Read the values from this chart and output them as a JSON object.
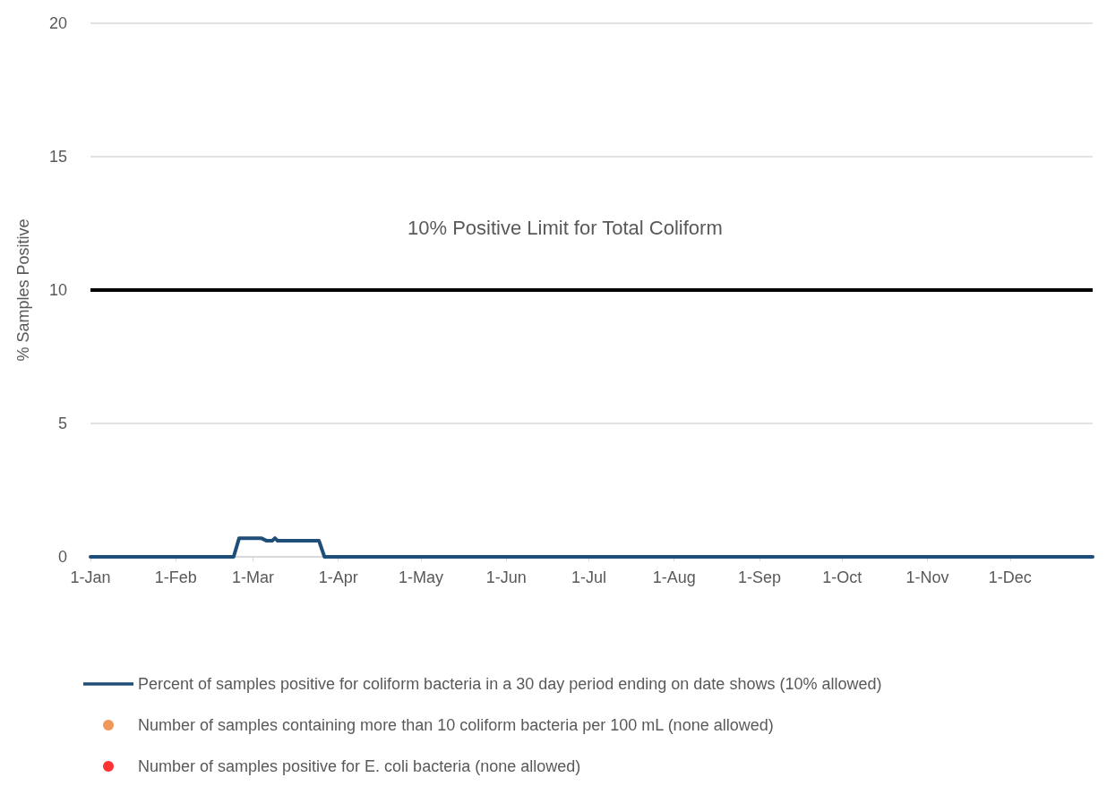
{
  "chart_data": {
    "type": "line",
    "ylabel": "% Samples Positive",
    "x": [
      "--01-01",
      "--02-22",
      "--02-24",
      "--03-04",
      "--03-06",
      "--03-08",
      "--03-09",
      "--03-10",
      "--03-25",
      "--03-27",
      "--12-31"
    ],
    "series": [
      {
        "name": "Percent of samples positive for coliform bacteria in a 30 day period ending on date shows (10% allowed)",
        "color": "#1f4e79",
        "values": [
          0,
          0,
          0.7,
          0.7,
          0.6,
          0.6,
          0.7,
          0.6,
          0.6,
          0,
          0
        ]
      },
      {
        "name": "Number of samples containing more than 10 coliform bacteria per 100 mL (none allowed)",
        "type": "scatter",
        "color": "#ed7d31",
        "values": [
          null,
          null,
          null,
          null,
          null,
          null,
          null,
          null,
          null,
          null,
          null
        ]
      },
      {
        "name": "Number of samples positive for E. coli bacteria (none allowed)",
        "type": "scatter",
        "color": "#ff0000",
        "values": [
          null,
          null,
          null,
          null,
          null,
          null,
          null,
          null,
          null,
          null,
          null
        ]
      }
    ],
    "xlim": [
      "--01-01",
      "--12-31"
    ],
    "xticks": [
      {
        "value": "--01-01",
        "label": "1-Jan"
      },
      {
        "value": "--02-01",
        "label": "1-Feb"
      },
      {
        "value": "--03-01",
        "label": "1-Mar"
      },
      {
        "value": "--04-01",
        "label": "1-Apr"
      },
      {
        "value": "--05-01",
        "label": "1-May"
      },
      {
        "value": "--06-01",
        "label": "1-Jun"
      },
      {
        "value": "--07-01",
        "label": "1-Jul"
      },
      {
        "value": "--08-01",
        "label": "1-Aug"
      },
      {
        "value": "--09-01",
        "label": "1-Sep"
      },
      {
        "value": "--10-01",
        "label": "1-Oct"
      },
      {
        "value": "--11-01",
        "label": "1-Nov"
      },
      {
        "value": "--12-01",
        "label": "1-Dec"
      }
    ],
    "ylim": [
      0,
      20
    ],
    "yticks": [
      0,
      5,
      10,
      15,
      20
    ],
    "ref_lines": [
      {
        "axis": "y",
        "value": 10,
        "color": "#000000"
      }
    ],
    "annotations": [
      "10% Positive Limit for Total Coliform"
    ],
    "grid": "y",
    "legend": "bottom",
    "marker": "none",
    "line_style": "solid"
  }
}
